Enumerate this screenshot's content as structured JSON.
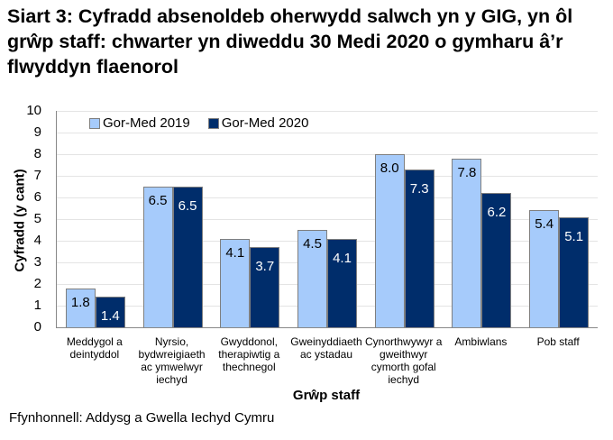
{
  "title": "Siart 3: Cyfradd absenoldeb oherwydd salwch yn y GIG, yn ôl grŵp staff: chwarter yn diweddu 30 Medi 2020 o gymharu â’r flwyddyn flaenorol",
  "source": "Ffynhonnell: Addysg a Gwella Iechyd Cymru",
  "colors": {
    "series_2019": "#a6cbfb",
    "series_2020": "#002d6b"
  },
  "chart_data": {
    "type": "bar",
    "title": "Siart 3: Cyfradd absenoldeb oherwydd salwch yn y GIG, yn ôl grŵp staff: chwarter yn diweddu 30 Medi 2020 o gymharu â’r flwyddyn flaenorol",
    "xlabel": "Grŵp staff",
    "ylabel": "Cyfradd (y cant)",
    "ylim": [
      0,
      10
    ],
    "yticks": [
      "0",
      "1",
      "2",
      "3",
      "4",
      "5",
      "6",
      "7",
      "8",
      "9",
      "10"
    ],
    "grid": true,
    "legend_position": "top",
    "categories": [
      "Meddygol a deintyddol",
      "Nyrsio, bydwreigiaeth ac ymwelwyr iechyd",
      "Gwyddonol, therapiwtig a thechnegol",
      "Gweinyddiaeth ac ystadau",
      "Cynorthwywyr a gweithwyr cymorth gofal iechyd",
      "Ambiwlans",
      "Pob staff"
    ],
    "series": [
      {
        "name": "Gor-Med 2019",
        "values": [
          1.8,
          6.5,
          4.1,
          4.5,
          8.0,
          7.8,
          5.4
        ],
        "labels": [
          "1.8",
          "6.5",
          "4.1",
          "4.5",
          "8.0",
          "7.8",
          "5.4"
        ]
      },
      {
        "name": "Gor-Med 2020",
        "values": [
          1.4,
          6.5,
          3.7,
          4.1,
          7.3,
          6.2,
          5.1
        ],
        "labels": [
          "1.4",
          "6.5",
          "3.7",
          "4.1",
          "7.3",
          "6.2",
          "5.1"
        ]
      }
    ]
  }
}
